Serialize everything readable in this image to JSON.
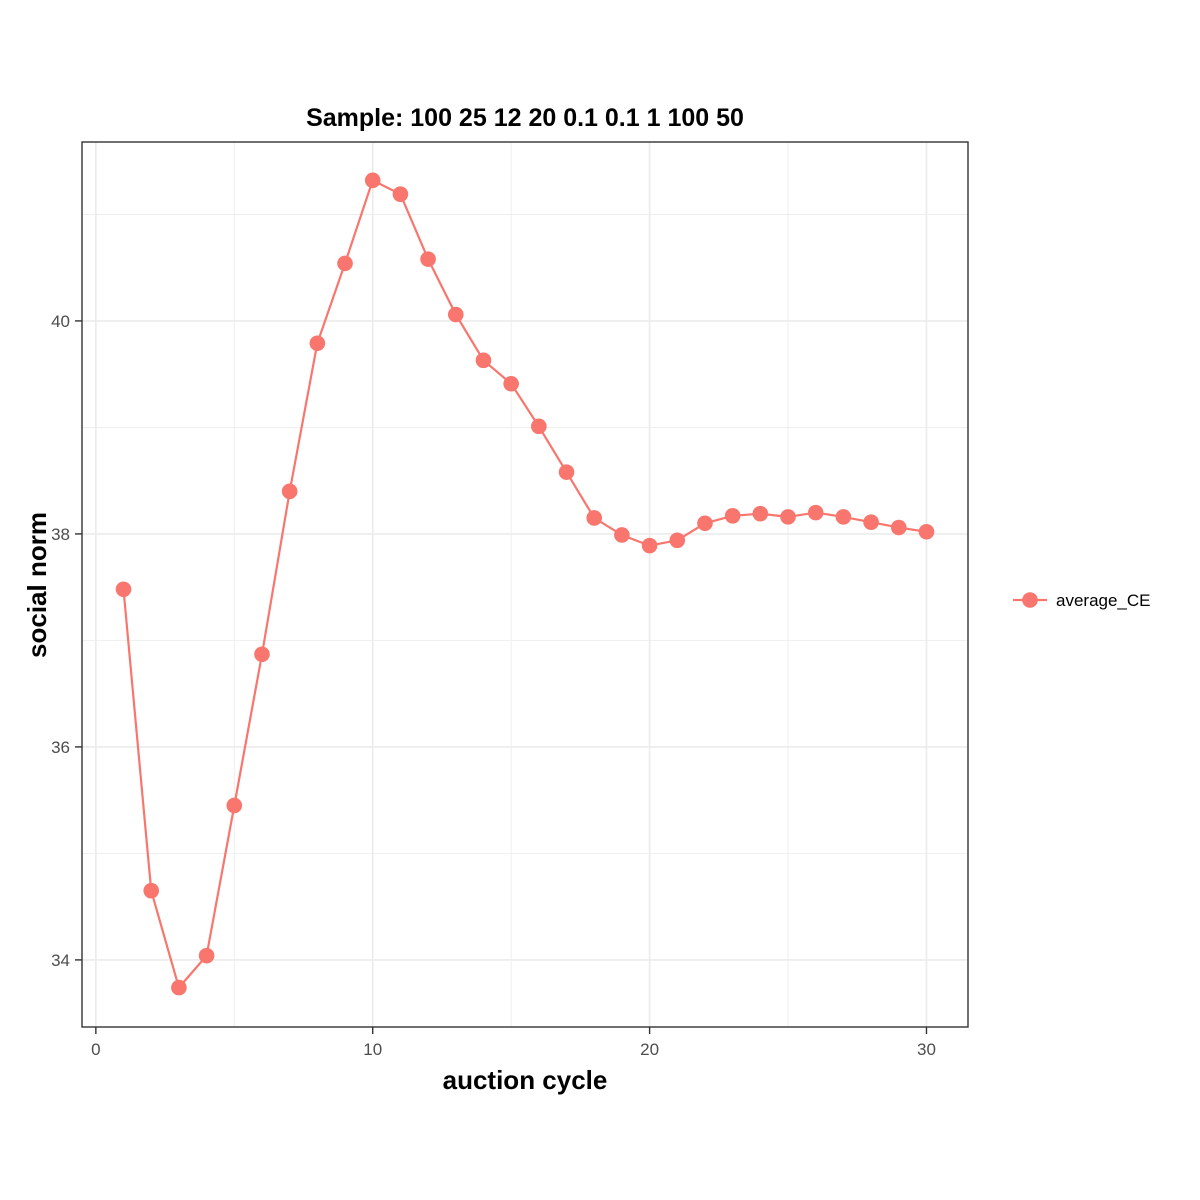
{
  "chart_data": {
    "type": "line",
    "title": "Sample: 100 25 12 20 0.1 0.1 1 100 50",
    "xlabel": "auction cycle",
    "ylabel": "social norm",
    "xlim": [
      -0.5,
      31.5
    ],
    "ylim": [
      33.37,
      41.68
    ],
    "x_ticks": [
      0,
      10,
      20,
      30
    ],
    "y_ticks": [
      34,
      36,
      38,
      40
    ],
    "grid": true,
    "legend_position": "right",
    "series": [
      {
        "name": "average_CE",
        "color": "#F8766D",
        "x": [
          1,
          2,
          3,
          4,
          5,
          6,
          7,
          8,
          9,
          10,
          11,
          12,
          13,
          14,
          15,
          16,
          17,
          18,
          19,
          20,
          21,
          22,
          23,
          24,
          25,
          26,
          27,
          28,
          29,
          30
        ],
        "values": [
          37.48,
          34.65,
          33.74,
          34.04,
          35.45,
          36.87,
          38.4,
          39.79,
          40.54,
          41.32,
          41.19,
          40.58,
          40.06,
          39.63,
          39.41,
          39.01,
          38.58,
          38.15,
          37.99,
          37.89,
          37.94,
          38.1,
          38.17,
          38.19,
          38.16,
          38.2,
          38.16,
          38.11,
          38.06,
          38.02
        ]
      }
    ]
  }
}
